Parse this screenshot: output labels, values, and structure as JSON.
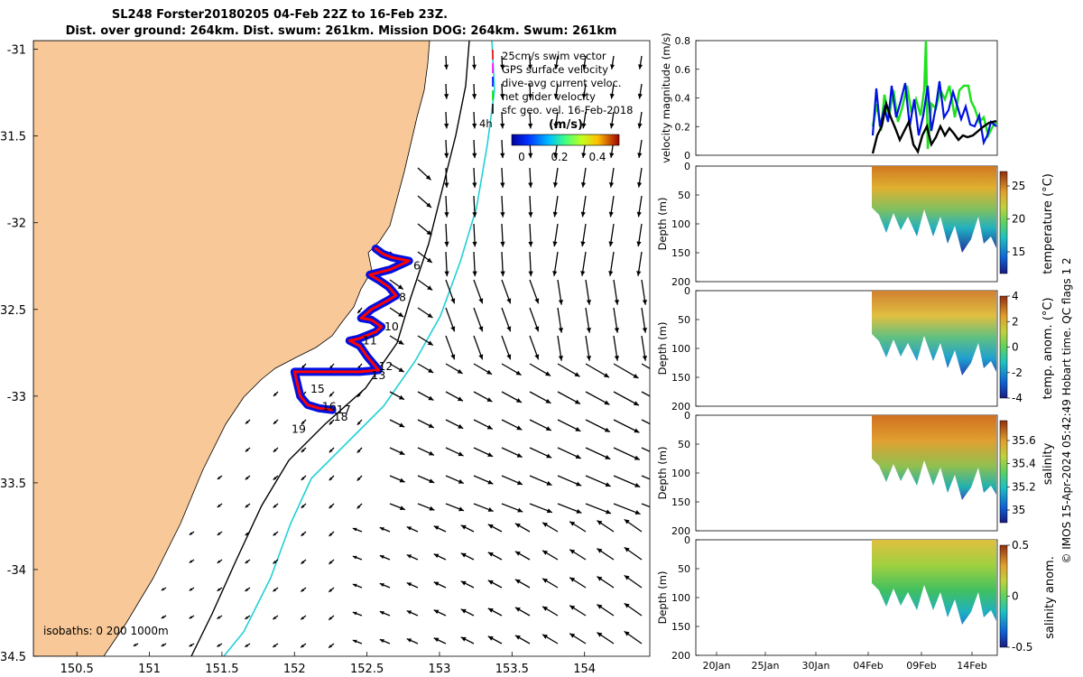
{
  "title": {
    "line1": "SL248 Forster20180205 04-Feb 22Z to 16-Feb 23Z.",
    "line2": "Dist. over ground: 264km. Dist. swum: 261km. Mission DOG: 264km. Swum: 261km"
  },
  "map": {
    "xticks": [
      "150.5",
      "151",
      "151.5",
      "152",
      "152.5",
      "153",
      "153.5",
      "154"
    ],
    "yticks": [
      "-31",
      "-31.5",
      "-32",
      "-32.5",
      "-33",
      "-33.5",
      "-34",
      "-34.5"
    ],
    "xlim": [
      150.2,
      154.45
    ],
    "ylim": [
      -34.5,
      -30.95
    ],
    "isobath_label": "isobaths: 0   200 1000m",
    "legend": [
      {
        "label": "25cm/s swim vector",
        "color": "#ff0000"
      },
      {
        "label": "GPS surface velocity",
        "color": "#ff00ff"
      },
      {
        "label": "dive-avg current veloc.",
        "color": "#0000ff"
      },
      {
        "label": "net glider velocity",
        "color": "#00dd00"
      },
      {
        "label": "sfc geo. vel. 16-Feb-2018",
        "color": "#000000"
      }
    ],
    "colorbar": {
      "title": "(m/s)",
      "ticks": [
        "0",
        "0.2",
        "0.4"
      ]
    },
    "corner_text": "4h",
    "day_labels": [
      {
        "day": "6",
        "lon": 152.82,
        "lat": -32.25
      },
      {
        "day": "8",
        "lon": 152.72,
        "lat": -32.43
      },
      {
        "day": "10",
        "lon": 152.62,
        "lat": -32.6
      },
      {
        "day": "11",
        "lon": 152.47,
        "lat": -32.68
      },
      {
        "day": "12",
        "lon": 152.58,
        "lat": -32.83
      },
      {
        "day": "13",
        "lon": 152.53,
        "lat": -32.88
      },
      {
        "day": "15",
        "lon": 152.11,
        "lat": -32.96
      },
      {
        "day": "16",
        "lon": 152.19,
        "lat": -33.06
      },
      {
        "day": "17",
        "lon": 152.29,
        "lat": -33.08
      },
      {
        "day": "18",
        "lon": 152.27,
        "lat": -33.12
      },
      {
        "day": "19",
        "lon": 151.98,
        "lat": -33.19
      }
    ],
    "track": [
      [
        152.56,
        -32.15
      ],
      [
        152.61,
        -32.18
      ],
      [
        152.67,
        -32.2
      ],
      [
        152.73,
        -32.21
      ],
      [
        152.79,
        -32.22
      ],
      [
        152.66,
        -32.27
      ],
      [
        152.52,
        -32.3
      ],
      [
        152.58,
        -32.33
      ],
      [
        152.65,
        -32.37
      ],
      [
        152.7,
        -32.42
      ],
      [
        152.64,
        -32.45
      ],
      [
        152.53,
        -32.5
      ],
      [
        152.46,
        -32.55
      ],
      [
        152.53,
        -32.56
      ],
      [
        152.6,
        -32.6
      ],
      [
        152.56,
        -32.63
      ],
      [
        152.44,
        -32.67
      ],
      [
        152.38,
        -32.68
      ],
      [
        152.45,
        -32.71
      ],
      [
        152.5,
        -32.77
      ],
      [
        152.55,
        -32.82
      ],
      [
        152.58,
        -32.85
      ],
      [
        152.45,
        -32.86
      ],
      [
        152.3,
        -32.86
      ],
      [
        152.15,
        -32.86
      ],
      [
        152.0,
        -32.86
      ],
      [
        152.02,
        -32.93
      ],
      [
        152.04,
        -33.0
      ],
      [
        152.09,
        -33.05
      ],
      [
        152.17,
        -33.07
      ],
      [
        152.26,
        -33.08
      ]
    ]
  },
  "timeseries": {
    "xticks": [
      "20Jan",
      "25Jan",
      "30Jan",
      "04Feb",
      "09Feb",
      "14Feb"
    ],
    "panels": [
      {
        "ylabel": "velocity magnitude (m/s)",
        "yticks": [
          "0",
          "0.2",
          "0.4",
          "0.6",
          "0.8"
        ],
        "ylim": [
          0,
          0.8
        ]
      },
      {
        "ylabel": "Depth (m)",
        "yticks": [
          "0",
          "50",
          "100",
          "150",
          "200"
        ],
        "ylim": [
          0,
          200
        ],
        "cbar_label": "temperature (°C)",
        "cbar_ticks": [
          "25",
          "20",
          "15"
        ]
      },
      {
        "ylabel": "Depth (m)",
        "yticks": [
          "0",
          "50",
          "100",
          "150",
          "200"
        ],
        "ylim": [
          0,
          200
        ],
        "cbar_label": "temp. anom. (°C)",
        "cbar_ticks": [
          "4",
          "2",
          "0",
          "-2",
          "-4"
        ]
      },
      {
        "ylabel": "Depth (m)",
        "yticks": [
          "0",
          "50",
          "100",
          "150",
          "200"
        ],
        "ylim": [
          0,
          200
        ],
        "cbar_label": "salinity",
        "cbar_ticks": [
          "35.6",
          "35.4",
          "35.2",
          "35"
        ]
      },
      {
        "ylabel": "Depth (m)",
        "yticks": [
          "0",
          "50",
          "100",
          "150",
          "200"
        ],
        "ylim": [
          0,
          200
        ],
        "cbar_label": "salinity anom.",
        "cbar_ticks": [
          "0.5",
          "0",
          "-0.5"
        ]
      }
    ]
  },
  "side_note": "© IMOS 15-Apr-2024 05:42:49 Hobart time. QC flags 1  2",
  "chart_data": [
    {
      "type": "scatter",
      "title": "SL248 Forster20180205 04-Feb 22Z to 16-Feb 23Z.",
      "xlim": [
        150.2,
        154.45
      ],
      "ylim": [
        -34.5,
        -30.95
      ],
      "series": [
        {
          "name": "25cm/s swim vector"
        },
        {
          "name": "GPS surface velocity"
        },
        {
          "name": "dive-avg current veloc."
        },
        {
          "name": "net glider velocity"
        },
        {
          "name": "sfc geo. vel. 16-Feb-2018"
        }
      ]
    },
    {
      "type": "line",
      "ylabel": "velocity magnitude (m/s)",
      "ylim": [
        0,
        0.8
      ],
      "x": [
        "04Feb",
        "05Feb",
        "06Feb",
        "07Feb",
        "08Feb",
        "09Feb",
        "10Feb",
        "11Feb",
        "12Feb",
        "13Feb",
        "14Feb",
        "15Feb",
        "16Feb"
      ],
      "series": [
        {
          "values": [
            0.25,
            0.22,
            0.35,
            0.3,
            0.4,
            0.78,
            0.35,
            0.4,
            0.45,
            0.5,
            0.38,
            0.2,
            0.25
          ]
        },
        {
          "values": [
            0.2,
            0.28,
            0.4,
            0.3,
            0.45,
            0.5,
            0.3,
            0.38,
            0.45,
            0.3,
            0.25,
            0.15,
            0.2
          ]
        },
        {
          "values": [
            0.02,
            0.2,
            0.35,
            0.1,
            0.05,
            0.2,
            0.05,
            0.15,
            0.2,
            0.08,
            0.15,
            0.2,
            0.22
          ]
        }
      ]
    },
    {
      "type": "heatmap",
      "ylabel": "Depth (m)",
      "ylim": [
        0,
        200
      ],
      "colorbar": "temperature (°C)",
      "cbar_ticks": [
        25,
        20,
        15
      ]
    },
    {
      "type": "heatmap",
      "ylabel": "Depth (m)",
      "ylim": [
        0,
        200
      ],
      "colorbar": "temp. anom. (°C)",
      "cbar_ticks": [
        4,
        2,
        0,
        -2,
        -4
      ]
    },
    {
      "type": "heatmap",
      "ylabel": "Depth (m)",
      "ylim": [
        0,
        200
      ],
      "colorbar": "salinity",
      "cbar_ticks": [
        35.6,
        35.4,
        35.2,
        35
      ]
    },
    {
      "type": "heatmap",
      "ylabel": "Depth (m)",
      "ylim": [
        0,
        200
      ],
      "colorbar": "salinity anom.",
      "cbar_ticks": [
        0.5,
        0,
        -0.5
      ]
    }
  ]
}
